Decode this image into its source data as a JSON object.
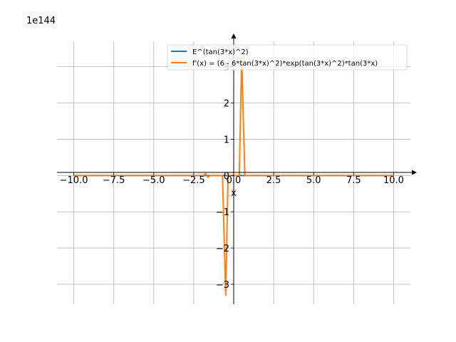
{
  "chart_data": {
    "type": "line",
    "title": "",
    "xlabel": "x",
    "ylabel": "",
    "offset_text": "1e144",
    "xlim": [
      -11.05,
      11.05
    ],
    "ylim": [
      -3.55,
      3.7
    ],
    "x_ticks": [
      -10.0,
      -7.5,
      -5.0,
      -2.5,
      0.0,
      2.5,
      5.0,
      7.5,
      10.0
    ],
    "x_tick_labels": [
      "−10.0",
      "−7.5",
      "−5.0",
      "−2.5",
      "0.0",
      "2.5",
      "5.0",
      "7.5",
      "10.0"
    ],
    "y_ticks": [
      -3,
      -2,
      -1,
      0,
      1,
      2,
      3
    ],
    "y_tick_labels": [
      "−3",
      "−2",
      "−1",
      "0",
      "1",
      "2",
      "3"
    ],
    "grid": true,
    "legend_position": "top-right",
    "series": [
      {
        "name": "E^(tan(3*x)^2)",
        "color": "#1f77b4",
        "x": [
          -10,
          -5.8,
          -5.6,
          -1.9,
          -1.5,
          -0.7,
          -0.5,
          -0.35,
          -0.15,
          0,
          0.15,
          0.35,
          0.5,
          0.7,
          1.0,
          5.6,
          5.8,
          10
        ],
        "y": [
          0,
          0,
          0,
          0,
          0,
          0,
          0,
          0,
          0,
          0,
          0,
          0,
          0,
          0,
          0,
          0,
          0,
          0
        ]
      },
      {
        "name": "f'(x) = (6 - 6*tan(3*x)^2)*exp(tan(3*x)^2)*tan(3*x)",
        "color": "#ff7f0e",
        "x": [
          -10,
          -5.8,
          -5.6,
          -1.9,
          -1.75,
          -1.6,
          -1.5,
          -0.7,
          -0.5,
          -0.35,
          -0.15,
          0,
          0.15,
          0.35,
          0.5,
          0.7,
          1.0,
          5.6,
          5.8,
          10
        ],
        "y": [
          0,
          0,
          0,
          0,
          0.05,
          -0.05,
          0,
          0,
          -3.3,
          0,
          0,
          0,
          0,
          0,
          3.25,
          0,
          0,
          0,
          0,
          0
        ]
      }
    ]
  }
}
